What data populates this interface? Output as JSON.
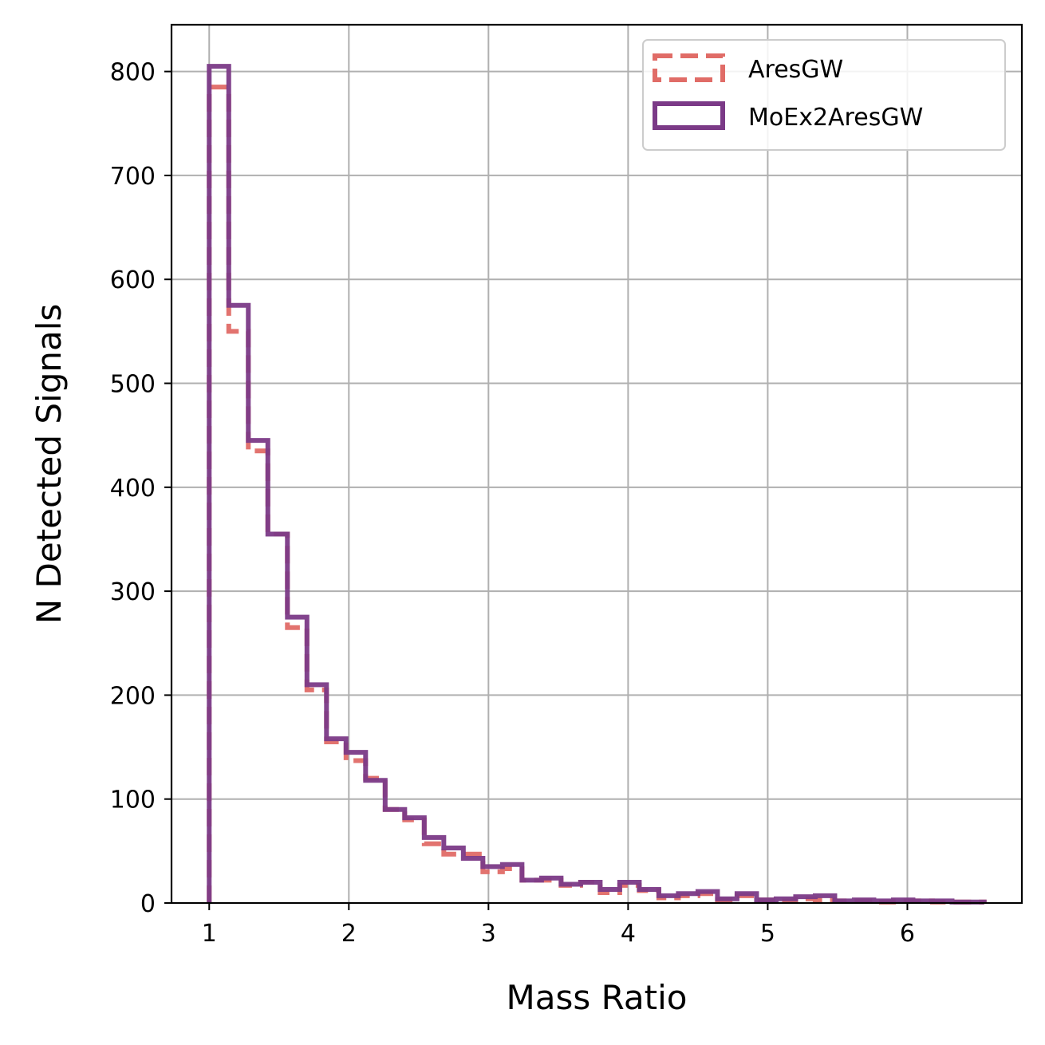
{
  "chart_data": {
    "type": "histogram",
    "title": "",
    "xlabel": "Mass Ratio",
    "ylabel": "N Detected Signals",
    "xlim": [
      0.73,
      6.82
    ],
    "ylim": [
      0,
      845
    ],
    "grid": true,
    "legend_position": "top-right",
    "x_ticks": [
      1,
      2,
      3,
      4,
      5,
      6
    ],
    "y_ticks": [
      0,
      100,
      200,
      300,
      400,
      500,
      600,
      700,
      800
    ],
    "bin_edges": [
      1.0,
      1.14,
      1.28,
      1.42,
      1.56,
      1.7,
      1.84,
      1.98,
      2.12,
      2.26,
      2.4,
      2.54,
      2.68,
      2.82,
      2.96,
      3.1,
      3.24,
      3.38,
      3.52,
      3.66,
      3.8,
      3.94,
      4.08,
      4.22,
      4.36,
      4.5,
      4.64,
      4.78,
      4.92,
      5.06,
      5.2,
      5.34,
      5.48,
      5.62,
      5.76,
      5.9,
      6.04,
      6.18,
      6.32,
      6.46,
      6.55
    ],
    "series": [
      {
        "name": "AresGW",
        "color": "#e06c67",
        "style": "dashed",
        "values": [
          785,
          550,
          435,
          355,
          265,
          205,
          155,
          137,
          120,
          90,
          80,
          57,
          47,
          47,
          30,
          33,
          22,
          22,
          17,
          20,
          10,
          17,
          12,
          5,
          7,
          9,
          3,
          7,
          3,
          2,
          4,
          3,
          2,
          2,
          1,
          2,
          2,
          1,
          1,
          1
        ]
      },
      {
        "name": "MoEx2AresGW",
        "color": "#7b3a87",
        "style": "solid",
        "values": [
          805,
          575,
          445,
          355,
          275,
          210,
          158,
          145,
          118,
          90,
          82,
          63,
          53,
          43,
          35,
          37,
          22,
          24,
          18,
          20,
          13,
          20,
          13,
          7,
          9,
          11,
          4,
          9,
          3,
          4,
          6,
          7,
          2,
          3,
          2,
          3,
          2,
          2,
          1,
          1
        ]
      }
    ]
  }
}
